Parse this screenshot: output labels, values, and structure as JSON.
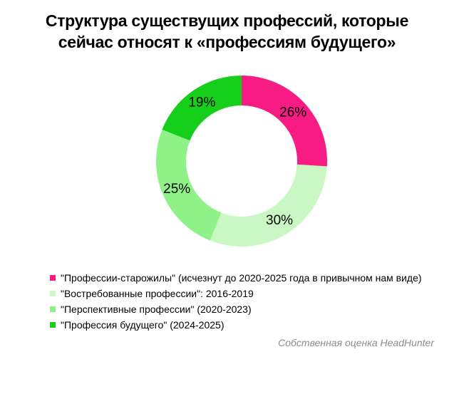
{
  "chart_data": {
    "type": "pie",
    "title_lines": [
      "Структура существущих профессий, которые",
      "сейчас относят к «профессиям будущего»"
    ],
    "categories": [
      "\"Профессии-старожилы\"  (исчезнут до 2020-2025  года в привычном нам виде)",
      "\"Востребованные  профессии\":  2016-2019",
      "\"Перспективные  профессии\"  (2020-2023)",
      "\"Профессия  будущего\"  (2024-2025)"
    ],
    "values": [
      26,
      30,
      25,
      19
    ],
    "labels": [
      "26%",
      "30%",
      "25%",
      "19%"
    ],
    "colors": [
      "#f71c84",
      "#c9f8c4",
      "#8ff288",
      "#16cf1b"
    ],
    "donut": true,
    "legend_position": "bottom-left"
  },
  "source": "Собственная оценка HeadHunter"
}
